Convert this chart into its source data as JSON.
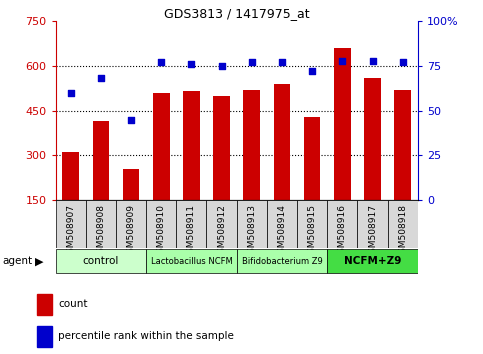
{
  "title": "GDS3813 / 1417975_at",
  "samples": [
    "GSM508907",
    "GSM508908",
    "GSM508909",
    "GSM508910",
    "GSM508911",
    "GSM508912",
    "GSM508913",
    "GSM508914",
    "GSM508915",
    "GSM508916",
    "GSM508917",
    "GSM508918"
  ],
  "counts": [
    310,
    415,
    255,
    510,
    515,
    500,
    520,
    540,
    430,
    660,
    560,
    520
  ],
  "percentile": [
    60,
    68,
    45,
    77,
    76,
    75,
    77,
    77,
    72,
    78,
    78,
    77
  ],
  "ylim_left": [
    150,
    750
  ],
  "ylim_right": [
    0,
    100
  ],
  "yticks_left": [
    150,
    300,
    450,
    600,
    750
  ],
  "yticks_right": [
    0,
    25,
    50,
    75,
    100
  ],
  "bar_color": "#cc0000",
  "dot_color": "#0000cc",
  "groups": [
    {
      "label": "control",
      "start": 0,
      "end": 3,
      "color": "#ccffcc",
      "fontsize": 7.5,
      "bold": false
    },
    {
      "label": "Lactobacillus NCFM",
      "start": 3,
      "end": 6,
      "color": "#aaffaa",
      "fontsize": 6,
      "bold": false
    },
    {
      "label": "Bifidobacterium Z9",
      "start": 6,
      "end": 9,
      "color": "#aaffaa",
      "fontsize": 6,
      "bold": false
    },
    {
      "label": "NCFM+Z9",
      "start": 9,
      "end": 12,
      "color": "#44dd44",
      "fontsize": 7.5,
      "bold": true
    }
  ],
  "xlabel_rotation": -90,
  "bar_bottom": 150,
  "gridlines": [
    300,
    450,
    600
  ],
  "legend_count_color": "#cc0000",
  "legend_dot_color": "#0000cc",
  "xtick_bg": "#d8d8d8",
  "xtick_fontsize": 6.5
}
